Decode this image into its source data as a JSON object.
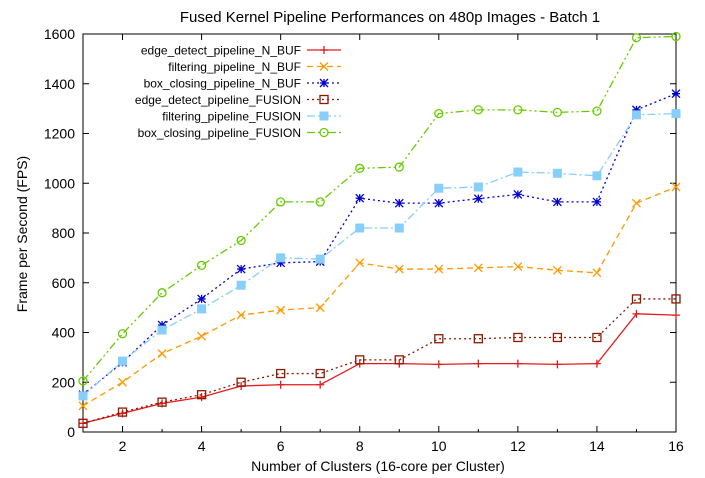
{
  "chart_data": {
    "type": "line",
    "title": "Fused Kernel Pipeline Performances on 480p Images - Batch 1",
    "xlabel": "Number of Clusters (16-core per Cluster)",
    "ylabel": "Frame per Second (FPS)",
    "xlim": [
      1,
      16
    ],
    "ylim": [
      0,
      1600
    ],
    "x_ticks": [
      2,
      4,
      6,
      8,
      10,
      12,
      14,
      16
    ],
    "y_ticks": [
      0,
      200,
      400,
      600,
      800,
      1000,
      1200,
      1400,
      1600
    ],
    "grid": false,
    "legend_position": "top-left",
    "x": [
      1,
      2,
      3,
      4,
      5,
      6,
      7,
      8,
      9,
      10,
      11,
      12,
      13,
      14,
      15,
      16
    ],
    "series": [
      {
        "name": "edge_detect_pipeline_N_BUF",
        "color": "#e41a1c",
        "dash": "solid",
        "marker": "plus",
        "values": [
          35,
          75,
          115,
          140,
          185,
          190,
          190,
          275,
          275,
          272,
          275,
          275,
          272,
          275,
          475,
          470
        ]
      },
      {
        "name": "filtering_pipeline_N_BUF",
        "color": "#ff9900",
        "dash": "dashed",
        "marker": "cross",
        "values": [
          105,
          200,
          315,
          385,
          470,
          490,
          500,
          680,
          655,
          655,
          660,
          665,
          650,
          640,
          920,
          985
        ]
      },
      {
        "name": "box_closing_pipeline_N_BUF",
        "color": "#0000cc",
        "dash": "dotted",
        "marker": "star",
        "values": [
          150,
          280,
          430,
          535,
          655,
          680,
          685,
          940,
          920,
          920,
          938,
          955,
          925,
          925,
          1295,
          1360
        ]
      },
      {
        "name": "edge_detect_pipeline_FUSION",
        "color": "#8b1a00",
        "dash": "dotted",
        "marker": "square",
        "values": [
          35,
          80,
          120,
          150,
          200,
          235,
          235,
          290,
          290,
          375,
          375,
          380,
          380,
          380,
          535,
          535
        ]
      },
      {
        "name": "filtering_pipeline_FUSION",
        "color": "#87cefa",
        "dash": "dashdot",
        "marker": "filled-square",
        "values": [
          145,
          285,
          410,
          495,
          590,
          700,
          695,
          820,
          820,
          980,
          985,
          1045,
          1040,
          1030,
          1275,
          1280
        ]
      },
      {
        "name": "box_closing_pipeline_FUSION",
        "color": "#66cc00",
        "dash": "dashdotdot",
        "marker": "circle",
        "values": [
          205,
          395,
          560,
          670,
          770,
          925,
          925,
          1060,
          1065,
          1280,
          1295,
          1295,
          1285,
          1290,
          1585,
          1590
        ]
      }
    ]
  }
}
